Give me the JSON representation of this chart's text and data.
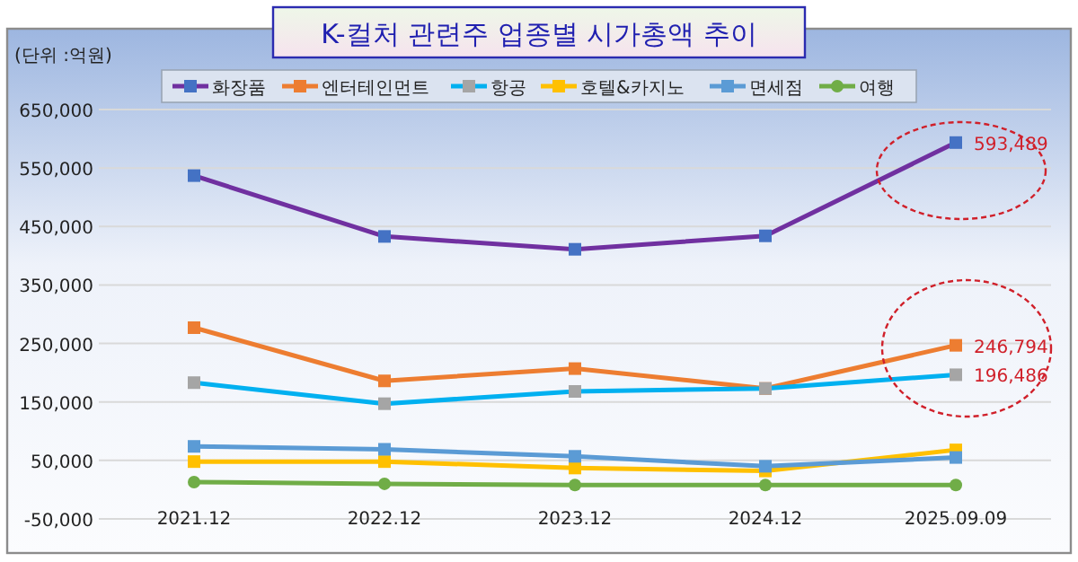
{
  "chart_data": {
    "type": "line",
    "title": "K-컬처 관련주 업종별 시가총액 추이",
    "ylabel": "(단위 :억원)",
    "categories": [
      "2021.12",
      "2022.12",
      "2023.12",
      "2024.12",
      "2025.09.09"
    ],
    "series": [
      {
        "name": "화장품",
        "color": "#7030a0",
        "colors": [
          "#4472c4",
          "#4472c4",
          "#4472c4",
          "#4472c4",
          "#4472c4"
        ],
        "marker": "square",
        "values": [
          537000,
          433000,
          411000,
          434000,
          593489
        ],
        "value_labels": [
          null,
          null,
          null,
          null,
          "593,489"
        ]
      },
      {
        "name": "엔터테인먼트",
        "color": "#ed7d31",
        "colors": [
          "#ed7d31",
          "#ed7d31",
          "#ed7d31",
          "#ed7d31",
          "#ed7d31"
        ],
        "marker": "square",
        "values": [
          277000,
          186000,
          207000,
          173000,
          246794
        ],
        "value_labels": [
          null,
          null,
          null,
          null,
          "246,794"
        ]
      },
      {
        "name": "항공",
        "color": "#00b0f0",
        "colors": [
          "#a5a5a5",
          "#a5a5a5",
          "#a5a5a5",
          "#a5a5a5",
          "#a5a5a5"
        ],
        "marker": "square",
        "values": [
          183000,
          147000,
          168000,
          173000,
          196486
        ],
        "value_labels": [
          null,
          null,
          null,
          null,
          "196,486"
        ]
      },
      {
        "name": "호텔&카지노",
        "color": "#ffc000",
        "colors": [
          "#ffc000",
          "#ffc000",
          "#ffc000",
          "#ffc000",
          "#ffc000"
        ],
        "marker": "square",
        "values": [
          48000,
          48000,
          37000,
          32000,
          68000
        ]
      },
      {
        "name": "면세점",
        "color": "#5b9bd5",
        "colors": [
          "#5b9bd5",
          "#5b9bd5",
          "#5b9bd5",
          "#5b9bd5",
          "#5b9bd5"
        ],
        "marker": "square",
        "values": [
          74000,
          69000,
          57000,
          40000,
          55000
        ]
      },
      {
        "name": "여행",
        "color": "#70ad47",
        "colors": [
          "#70ad47",
          "#70ad47",
          "#70ad47",
          "#70ad47",
          "#70ad47"
        ],
        "marker": "circle",
        "values": [
          13000,
          10000,
          8000,
          8000,
          8000
        ]
      }
    ],
    "ylim": [
      -50000,
      650000
    ],
    "yticks": [
      {
        "value": -50000,
        "label": "-50,000"
      },
      {
        "value": 50000,
        "label": "50,000"
      },
      {
        "value": 150000,
        "label": "150,000"
      },
      {
        "value": 250000,
        "label": "250,000"
      },
      {
        "value": 350000,
        "label": "350,000"
      },
      {
        "value": 450000,
        "label": "450,000"
      },
      {
        "value": 550000,
        "label": "550,000"
      },
      {
        "value": 650000,
        "label": "650,000"
      }
    ],
    "grid": "y",
    "legend": "top",
    "line_style": "solid"
  }
}
